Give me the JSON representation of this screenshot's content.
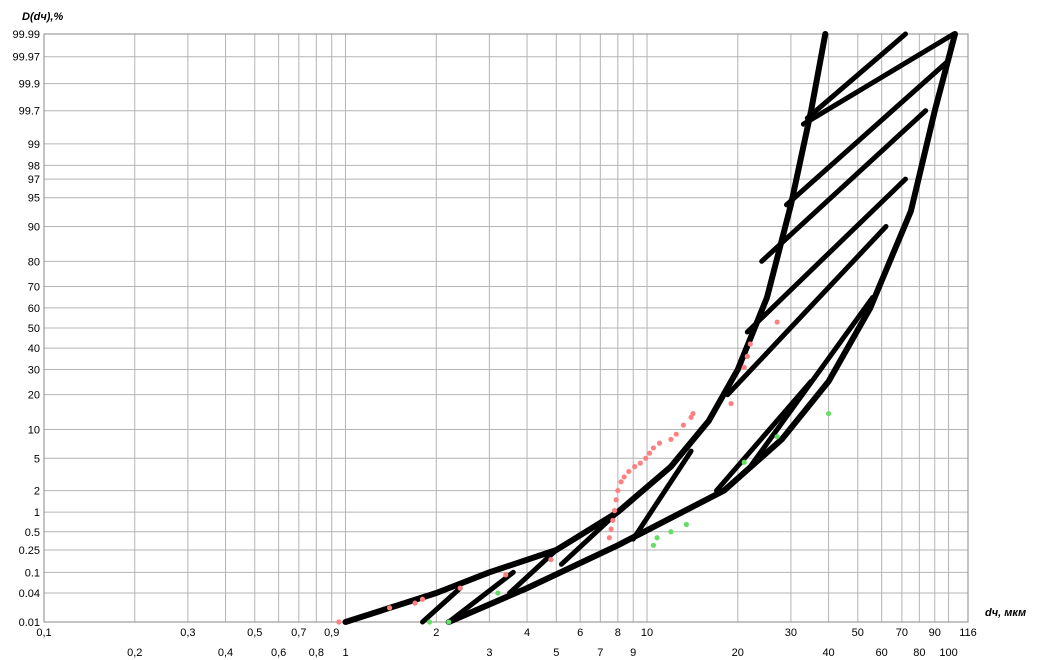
{
  "chart_data": {
    "type": "scatter",
    "title": "",
    "ylabel": "D(dч),%",
    "xlabel": "dч, мкм",
    "x_scale": "log",
    "y_scale": "probability",
    "xlim": [
      0.1,
      116
    ],
    "ylim": [
      0.01,
      99.99
    ],
    "grid": true,
    "x_ticks_top": [
      "0,1",
      "0,3",
      "0,5",
      "0,7",
      "0,9",
      "2",
      "4",
      "6",
      "8",
      "10",
      "30",
      "50",
      "70",
      "90",
      "116"
    ],
    "x_ticks_bottom": [
      "0,2",
      "0,4",
      "0,6",
      "0,8",
      "1",
      "3",
      "5",
      "7",
      "9",
      "20",
      "40",
      "60",
      "80",
      "100"
    ],
    "y_ticks": [
      "0.01",
      "0.04",
      "0.1",
      "0.25",
      "0.5",
      "1",
      "2",
      "5",
      "10",
      "20",
      "30",
      "40",
      "50",
      "60",
      "70",
      "80",
      "90",
      "95",
      "97",
      "98",
      "99",
      "99.7",
      "99.9",
      "99.97",
      "99.99"
    ],
    "series": [
      {
        "color": "#ff8080",
        "marker": "dot",
        "points": [
          [
            0.95,
            0.01
          ],
          [
            1.4,
            0.02
          ],
          [
            1.7,
            0.025
          ],
          [
            1.8,
            0.03
          ],
          [
            2.4,
            0.05
          ],
          [
            3.4,
            0.09
          ],
          [
            4.8,
            0.17
          ],
          [
            7.5,
            0.4
          ],
          [
            7.6,
            0.55
          ],
          [
            7.7,
            0.75
          ],
          [
            7.8,
            1.05
          ],
          [
            7.9,
            1.5
          ],
          [
            8.0,
            2.0
          ],
          [
            8.2,
            2.6
          ],
          [
            8.4,
            3.0
          ],
          [
            8.7,
            3.5
          ],
          [
            9.1,
            4.0
          ],
          [
            9.5,
            4.4
          ],
          [
            9.9,
            5.0
          ],
          [
            10.2,
            5.7
          ],
          [
            10.5,
            6.5
          ],
          [
            11.0,
            7.3
          ],
          [
            12.0,
            8.0
          ],
          [
            12.5,
            9.0
          ],
          [
            13.2,
            11.0
          ],
          [
            14.0,
            13.0
          ],
          [
            14.2,
            14.0
          ],
          [
            19.0,
            17.0
          ],
          [
            21.0,
            31.0
          ],
          [
            21.5,
            36.0
          ],
          [
            22.0,
            42.0
          ],
          [
            27.0,
            53.0
          ]
        ]
      },
      {
        "color": "#66dd66",
        "marker": "dot",
        "points": [
          [
            1.9,
            0.01
          ],
          [
            2.2,
            0.01
          ],
          [
            3.2,
            0.04
          ],
          [
            10.5,
            0.3
          ],
          [
            10.8,
            0.4
          ],
          [
            12.0,
            0.5
          ],
          [
            13.5,
            0.65
          ],
          [
            21.0,
            4.5
          ],
          [
            27.0,
            8.5
          ],
          [
            40.0,
            14.0
          ]
        ]
      }
    ],
    "envelope": {
      "color": "#000000",
      "left_curve": [
        [
          1.0,
          0.01
        ],
        [
          2.0,
          0.04
        ],
        [
          3.0,
          0.1
        ],
        [
          5.0,
          0.25
        ],
        [
          8.0,
          1.0
        ],
        [
          12.0,
          4.0
        ],
        [
          16.0,
          12.0
        ],
        [
          20.0,
          30.0
        ],
        [
          25.0,
          65.0
        ],
        [
          30.0,
          94.0
        ],
        [
          35.0,
          99.7
        ],
        [
          39.0,
          99.99
        ]
      ],
      "right_curve": [
        [
          2.2,
          0.01
        ],
        [
          4.0,
          0.05
        ],
        [
          8.0,
          0.3
        ],
        [
          18.0,
          2.0
        ],
        [
          28.0,
          8.0
        ],
        [
          40.0,
          25.0
        ],
        [
          55.0,
          60.0
        ],
        [
          75.0,
          93.0
        ],
        [
          90.0,
          99.7
        ],
        [
          105.0,
          99.99
        ]
      ],
      "hatch_lines": [
        [
          [
            1.8,
            0.01
          ],
          [
            2.4,
            0.05
          ]
        ],
        [
          [
            2.2,
            0.01
          ],
          [
            3.6,
            0.1
          ]
        ],
        [
          [
            3.5,
            0.04
          ],
          [
            5.0,
            0.25
          ]
        ],
        [
          [
            5.2,
            0.14
          ],
          [
            8.0,
            1.0
          ]
        ],
        [
          [
            9.0,
            0.38
          ],
          [
            14.0,
            6.0
          ]
        ],
        [
          [
            17.0,
            2.0
          ],
          [
            35.0,
            25.0
          ]
        ],
        [
          [
            22.0,
            4.0
          ],
          [
            56.0,
            65.0
          ]
        ],
        [
          [
            18.5,
            20.0
          ],
          [
            62.0,
            90.0
          ]
        ],
        [
          [
            21.5,
            48.0
          ],
          [
            72.0,
            97.0
          ]
        ],
        [
          [
            24.0,
            80.0
          ],
          [
            84.0,
            99.7
          ]
        ],
        [
          [
            29.0,
            94.0
          ],
          [
            98.0,
            99.96
          ]
        ],
        [
          [
            33.0,
            99.5
          ],
          [
            104.0,
            99.99
          ]
        ],
        [
          [
            72.0,
            99.99
          ],
          [
            34.0,
            99.6
          ]
        ]
      ]
    }
  }
}
